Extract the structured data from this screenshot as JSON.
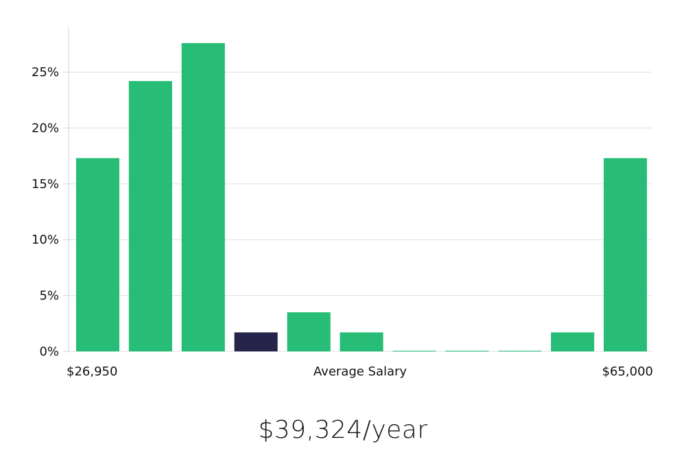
{
  "chart_data": {
    "type": "bar",
    "ylim": [
      0,
      29
    ],
    "yticks": [
      0,
      5,
      10,
      15,
      20,
      25
    ],
    "ytick_suffix": "%",
    "values": [
      17.3,
      24.2,
      27.6,
      1.7,
      3.5,
      1.7,
      0.05,
      0.05,
      0.05,
      1.7,
      17.3
    ],
    "highlight_index": 3,
    "colors": {
      "bar": "#27bd76",
      "highlight": "#26244a",
      "grid": "#dcdfe3",
      "axis": "#cfd3d8"
    },
    "x_left_label": "$26,950",
    "xlabel": "Average Salary",
    "x_right_label": "$65,000",
    "grid": true
  },
  "salary_text": "$39,324/year"
}
